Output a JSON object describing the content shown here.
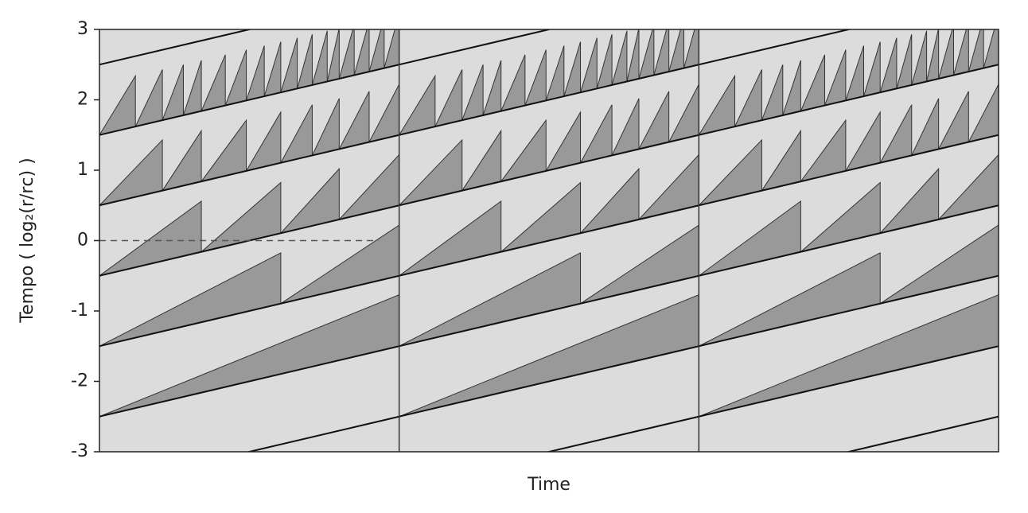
{
  "chart_data": {
    "type": "risset",
    "xlabel": "Time",
    "ylabel": "Tempo ( log₂(r/rᴄ) )",
    "xlim": [
      0,
      3
    ],
    "ylim": [
      -3,
      3
    ],
    "yticks": [
      -3,
      -2,
      -1,
      0,
      1,
      2,
      3
    ],
    "period_dividers": [
      1,
      2
    ],
    "lines": [
      -3.5,
      -2.5,
      -1.5,
      -0.5,
      0.5,
      1.5,
      2.5
    ],
    "bands": [
      {
        "base": -2.5,
        "height": 0.73,
        "breaks": [
          1
        ]
      },
      {
        "base": -1.5,
        "height": 0.72,
        "breaks": [
          0.605,
          1
        ]
      },
      {
        "base": -0.5,
        "height": 0.72,
        "breaks": [
          0.34,
          0.605,
          0.8,
          1
        ]
      },
      {
        "base": 0.5,
        "height": 0.72,
        "breaks": [
          0.21,
          0.34,
          0.49,
          0.605,
          0.71,
          0.8,
          0.9,
          1
        ]
      },
      {
        "base": 1.5,
        "height": 0.72,
        "breaks": [
          0.12,
          0.21,
          0.28,
          0.34,
          0.42,
          0.49,
          0.55,
          0.605,
          0.66,
          0.71,
          0.76,
          0.8,
          0.85,
          0.9,
          0.95,
          1
        ]
      }
    ],
    "reference_line": {
      "y": 0,
      "x": [
        0,
        0.93
      ]
    },
    "background": "#dcdcdc",
    "fill": "#999999",
    "line_color": "#111111"
  }
}
